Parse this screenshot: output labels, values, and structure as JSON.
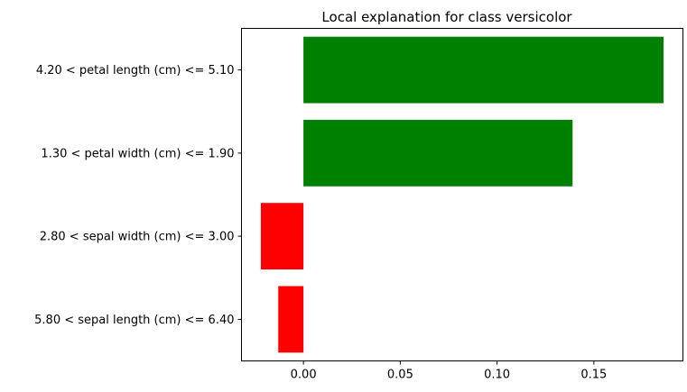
{
  "chart_data": {
    "type": "bar",
    "orientation": "horizontal",
    "title": "Local explanation for class versicolor",
    "xlabel": "",
    "ylabel": "",
    "categories": [
      "4.20 < petal length (cm) <= 5.10",
      "1.30 < petal width (cm) <= 1.90",
      "2.80 < sepal width (cm) <= 3.00",
      "5.80 < sepal length (cm) <= 6.40"
    ],
    "values": [
      0.186,
      0.139,
      -0.022,
      -0.013
    ],
    "bar_colors": [
      "#008000",
      "#008000",
      "#ff0000",
      "#ff0000"
    ],
    "xlim": [
      -0.032,
      0.196
    ],
    "xticks": [
      0.0,
      0.05,
      0.1,
      0.15
    ],
    "xtick_labels": [
      "0.00",
      "0.05",
      "0.10",
      "0.15"
    ],
    "grid": false,
    "legend": "none"
  }
}
